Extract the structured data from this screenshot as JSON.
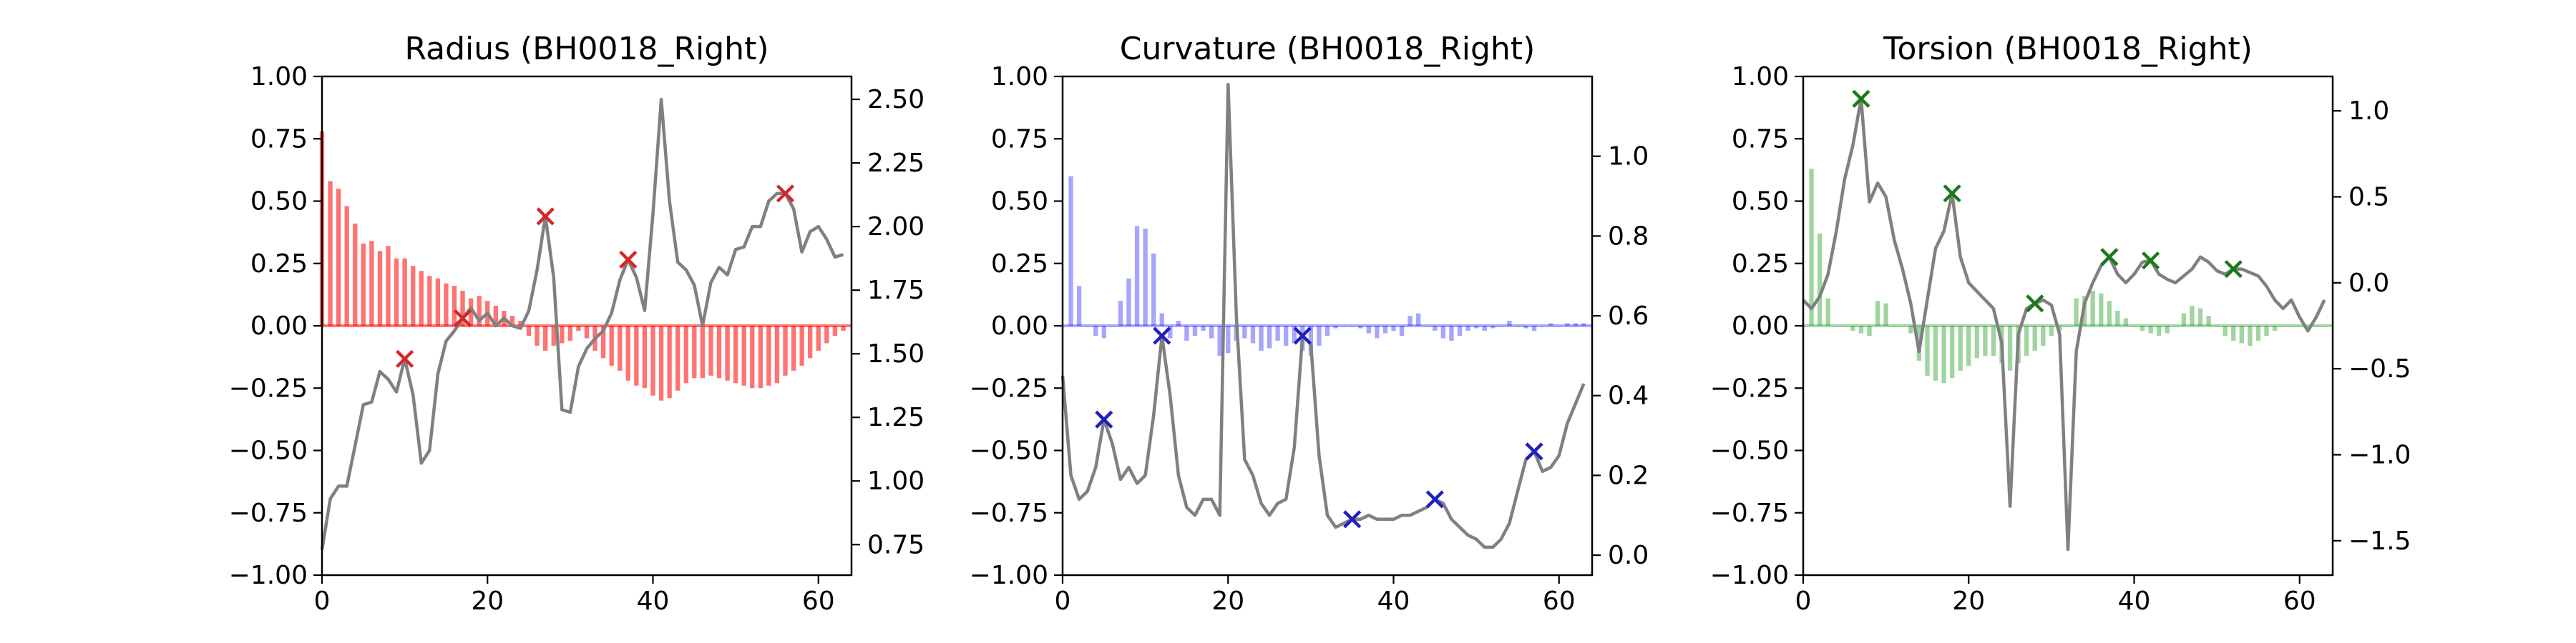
{
  "figure": {
    "background": "#ffffff"
  },
  "chart_data": [
    {
      "type": "bar",
      "title": "Radius (BH0018_Right)",
      "xlim": [
        0,
        64
      ],
      "ylim": [
        -1.0,
        1.0
      ],
      "y2lim": [
        0.63,
        2.59
      ],
      "xticks": [
        "0",
        "20",
        "40",
        "60"
      ],
      "yticks": [
        "1.00",
        "0.75",
        "0.50",
        "0.25",
        "0.00",
        "−0.25",
        "−0.50",
        "−0.75",
        "−1.00"
      ],
      "y2ticks": [
        "2.50",
        "2.25",
        "2.00",
        "1.75",
        "1.50",
        "1.25",
        "1.00",
        "0.75"
      ],
      "bar_color": "#ff0000",
      "bar_alpha": 0.55,
      "marker_color": "#d62728",
      "bars": [
        0.78,
        0.58,
        0.55,
        0.48,
        0.41,
        0.33,
        0.34,
        0.3,
        0.32,
        0.27,
        0.27,
        0.24,
        0.22,
        0.2,
        0.19,
        0.17,
        0.16,
        0.14,
        0.11,
        0.12,
        0.1,
        0.08,
        0.06,
        0.04,
        0.02,
        -0.04,
        -0.08,
        -0.1,
        -0.08,
        -0.07,
        -0.06,
        -0.02,
        -0.05,
        -0.1,
        -0.13,
        -0.16,
        -0.18,
        -0.22,
        -0.24,
        -0.25,
        -0.28,
        -0.3,
        -0.29,
        -0.26,
        -0.23,
        -0.21,
        -0.21,
        -0.2,
        -0.21,
        -0.22,
        -0.23,
        -0.24,
        -0.25,
        -0.25,
        -0.24,
        -0.23,
        -0.2,
        -0.18,
        -0.16,
        -0.13,
        -0.1,
        -0.07,
        -0.04,
        -0.02
      ],
      "line": [
        [
          0,
          0.73
        ],
        [
          1,
          0.93
        ],
        [
          2,
          0.98
        ],
        [
          3,
          0.98
        ],
        [
          4,
          1.14
        ],
        [
          5,
          1.3
        ],
        [
          6,
          1.31
        ],
        [
          7,
          1.43
        ],
        [
          8,
          1.4
        ],
        [
          9,
          1.35
        ],
        [
          10,
          1.48
        ],
        [
          11,
          1.34
        ],
        [
          12,
          1.07
        ],
        [
          13,
          1.12
        ],
        [
          14,
          1.42
        ],
        [
          15,
          1.55
        ],
        [
          16,
          1.59
        ],
        [
          17,
          1.64
        ],
        [
          18,
          1.68
        ],
        [
          19,
          1.63
        ],
        [
          20,
          1.66
        ],
        [
          21,
          1.61
        ],
        [
          22,
          1.64
        ],
        [
          23,
          1.61
        ],
        [
          24,
          1.6
        ],
        [
          25,
          1.67
        ],
        [
          26,
          1.83
        ],
        [
          27,
          2.04
        ],
        [
          28,
          1.8
        ],
        [
          29,
          1.28
        ],
        [
          30,
          1.27
        ],
        [
          31,
          1.45
        ],
        [
          32,
          1.52
        ],
        [
          33,
          1.56
        ],
        [
          34,
          1.59
        ],
        [
          35,
          1.66
        ],
        [
          36,
          1.79
        ],
        [
          37,
          1.87
        ],
        [
          38,
          1.8
        ],
        [
          39,
          1.67
        ],
        [
          40,
          2.05
        ],
        [
          41,
          2.5
        ],
        [
          42,
          2.1
        ],
        [
          43,
          1.86
        ],
        [
          44,
          1.83
        ],
        [
          45,
          1.77
        ],
        [
          46,
          1.61
        ],
        [
          47,
          1.78
        ],
        [
          48,
          1.84
        ],
        [
          49,
          1.81
        ],
        [
          50,
          1.91
        ],
        [
          51,
          1.92
        ],
        [
          52,
          2.0
        ],
        [
          53,
          2.0
        ],
        [
          54,
          2.1
        ],
        [
          55,
          2.13
        ],
        [
          56,
          2.13
        ],
        [
          57,
          2.07
        ],
        [
          58,
          1.9
        ],
        [
          59,
          1.98
        ],
        [
          60,
          2.0
        ],
        [
          61,
          1.95
        ],
        [
          62,
          1.88
        ],
        [
          63,
          1.89
        ]
      ],
      "markers": [
        [
          10,
          1.48
        ],
        [
          17,
          1.64
        ],
        [
          27,
          2.04
        ],
        [
          37,
          1.87
        ],
        [
          56,
          2.13
        ]
      ]
    },
    {
      "type": "bar",
      "title": "Curvature (BH0018_Right)",
      "xlim": [
        0,
        64
      ],
      "ylim": [
        -1.0,
        1.0
      ],
      "y2lim": [
        -0.05,
        1.2
      ],
      "xticks": [
        "0",
        "20",
        "40",
        "60"
      ],
      "yticks": [
        "1.00",
        "0.75",
        "0.50",
        "0.25",
        "0.00",
        "−0.25",
        "−0.50",
        "−0.75",
        "−1.00"
      ],
      "y2ticks": [
        "1.0",
        "0.8",
        "0.6",
        "0.4",
        "0.2",
        "0.0"
      ],
      "bar_color": "#0000ff",
      "bar_alpha": 0.35,
      "marker_color": "#1f1fbf",
      "bars": [
        0.0,
        0.6,
        0.16,
        0.0,
        -0.04,
        -0.05,
        0.0,
        0.1,
        0.19,
        0.4,
        0.39,
        0.29,
        0.05,
        -0.05,
        0.02,
        -0.06,
        -0.04,
        -0.02,
        -0.05,
        -0.12,
        -0.11,
        -0.06,
        -0.05,
        -0.07,
        -0.1,
        -0.09,
        -0.06,
        -0.08,
        -0.07,
        -0.1,
        -0.12,
        -0.08,
        -0.04,
        -0.01,
        0.0,
        0.0,
        -0.01,
        -0.03,
        -0.05,
        -0.03,
        -0.02,
        -0.04,
        0.04,
        0.05,
        0.0,
        -0.02,
        -0.05,
        -0.06,
        -0.04,
        -0.02,
        -0.01,
        -0.02,
        -0.01,
        0.0,
        0.02,
        0.0,
        -0.01,
        -0.02,
        0.0,
        0.01,
        0.0,
        0.01,
        0.01,
        0.01
      ],
      "line": [
        [
          0,
          0.45
        ],
        [
          1,
          0.2
        ],
        [
          2,
          0.14
        ],
        [
          3,
          0.16
        ],
        [
          4,
          0.22
        ],
        [
          5,
          0.34
        ],
        [
          6,
          0.28
        ],
        [
          7,
          0.19
        ],
        [
          8,
          0.22
        ],
        [
          9,
          0.18
        ],
        [
          10,
          0.2
        ],
        [
          11,
          0.35
        ],
        [
          12,
          0.55
        ],
        [
          13,
          0.4
        ],
        [
          14,
          0.2
        ],
        [
          15,
          0.12
        ],
        [
          16,
          0.1
        ],
        [
          17,
          0.14
        ],
        [
          18,
          0.14
        ],
        [
          19,
          0.1
        ],
        [
          20,
          1.18
        ],
        [
          21,
          0.6
        ],
        [
          22,
          0.24
        ],
        [
          23,
          0.2
        ],
        [
          24,
          0.13
        ],
        [
          25,
          0.1
        ],
        [
          26,
          0.13
        ],
        [
          27,
          0.14
        ],
        [
          28,
          0.27
        ],
        [
          29,
          0.55
        ],
        [
          30,
          0.53
        ],
        [
          31,
          0.25
        ],
        [
          32,
          0.1
        ],
        [
          33,
          0.07
        ],
        [
          34,
          0.08
        ],
        [
          35,
          0.09
        ],
        [
          36,
          0.09
        ],
        [
          37,
          0.1
        ],
        [
          38,
          0.09
        ],
        [
          39,
          0.09
        ],
        [
          40,
          0.09
        ],
        [
          41,
          0.1
        ],
        [
          42,
          0.1
        ],
        [
          43,
          0.11
        ],
        [
          44,
          0.12
        ],
        [
          45,
          0.14
        ],
        [
          46,
          0.13
        ],
        [
          47,
          0.09
        ],
        [
          48,
          0.07
        ],
        [
          49,
          0.05
        ],
        [
          50,
          0.04
        ],
        [
          51,
          0.02
        ],
        [
          52,
          0.02
        ],
        [
          53,
          0.04
        ],
        [
          54,
          0.08
        ],
        [
          55,
          0.16
        ],
        [
          56,
          0.24
        ],
        [
          57,
          0.26
        ],
        [
          58,
          0.21
        ],
        [
          59,
          0.22
        ],
        [
          60,
          0.25
        ],
        [
          61,
          0.33
        ],
        [
          62,
          0.38
        ],
        [
          63,
          0.43
        ]
      ],
      "markers": [
        [
          5,
          0.34
        ],
        [
          12,
          0.55
        ],
        [
          29,
          0.55
        ],
        [
          35,
          0.09
        ],
        [
          45,
          0.14
        ],
        [
          57,
          0.26
        ]
      ]
    },
    {
      "type": "bar",
      "title": "Torsion (BH0018_Right)",
      "xlim": [
        0,
        64
      ],
      "ylim": [
        -1.0,
        1.0
      ],
      "y2lim": [
        -1.7,
        1.2
      ],
      "xticks": [
        "0",
        "20",
        "40",
        "60"
      ],
      "yticks": [
        "1.00",
        "0.75",
        "0.50",
        "0.25",
        "0.00",
        "−0.25",
        "−0.50",
        "−0.75",
        "−1.00"
      ],
      "y2ticks": [
        "1.0",
        "0.5",
        "0.0",
        "−0.5",
        "−1.0",
        "−1.5"
      ],
      "bar_color": "#2ca02c",
      "bar_alpha": 0.45,
      "marker_color": "#1a7a1a",
      "bars": [
        0.0,
        0.63,
        0.37,
        0.11,
        0.0,
        0.0,
        -0.02,
        -0.03,
        -0.04,
        0.1,
        0.09,
        0.0,
        0.0,
        -0.03,
        -0.14,
        -0.2,
        -0.22,
        -0.23,
        -0.21,
        -0.18,
        -0.16,
        -0.13,
        -0.12,
        -0.12,
        -0.15,
        -0.18,
        -0.15,
        -0.12,
        -0.1,
        -0.08,
        -0.04,
        -0.02,
        0.0,
        0.11,
        0.12,
        0.14,
        0.13,
        0.1,
        0.06,
        0.03,
        0.0,
        -0.02,
        -0.03,
        -0.04,
        -0.03,
        0.0,
        0.05,
        0.08,
        0.07,
        0.04,
        0.0,
        -0.04,
        -0.06,
        -0.07,
        -0.08,
        -0.06,
        -0.04,
        -0.02,
        0.0,
        0.0,
        0.0,
        0.0,
        0.0,
        0.0
      ],
      "line": [
        [
          0,
          -0.1
        ],
        [
          1,
          -0.15
        ],
        [
          2,
          -0.08
        ],
        [
          3,
          0.05
        ],
        [
          4,
          0.3
        ],
        [
          5,
          0.6
        ],
        [
          6,
          0.8
        ],
        [
          7,
          1.07
        ],
        [
          8,
          0.47
        ],
        [
          9,
          0.58
        ],
        [
          10,
          0.5
        ],
        [
          11,
          0.25
        ],
        [
          12,
          0.08
        ],
        [
          13,
          -0.12
        ],
        [
          14,
          -0.4
        ],
        [
          15,
          -0.1
        ],
        [
          16,
          0.2
        ],
        [
          17,
          0.3
        ],
        [
          18,
          0.52
        ],
        [
          19,
          0.15
        ],
        [
          20,
          0.0
        ],
        [
          21,
          -0.05
        ],
        [
          22,
          -0.1
        ],
        [
          23,
          -0.15
        ],
        [
          24,
          -0.35
        ],
        [
          25,
          -1.3
        ],
        [
          26,
          -0.3
        ],
        [
          27,
          -0.15
        ],
        [
          28,
          -0.12
        ],
        [
          29,
          -0.1
        ],
        [
          30,
          -0.13
        ],
        [
          31,
          -0.3
        ],
        [
          32,
          -1.55
        ],
        [
          33,
          -0.4
        ],
        [
          34,
          -0.12
        ],
        [
          35,
          0.0
        ],
        [
          36,
          0.1
        ],
        [
          37,
          0.15
        ],
        [
          38,
          0.05
        ],
        [
          39,
          0.0
        ],
        [
          40,
          0.05
        ],
        [
          41,
          0.12
        ],
        [
          42,
          0.13
        ],
        [
          43,
          0.05
        ],
        [
          44,
          0.02
        ],
        [
          45,
          0.0
        ],
        [
          46,
          0.04
        ],
        [
          47,
          0.08
        ],
        [
          48,
          0.15
        ],
        [
          49,
          0.12
        ],
        [
          50,
          0.07
        ],
        [
          51,
          0.05
        ],
        [
          52,
          0.08
        ],
        [
          53,
          0.08
        ],
        [
          54,
          0.06
        ],
        [
          55,
          0.04
        ],
        [
          56,
          -0.02
        ],
        [
          57,
          -0.1
        ],
        [
          58,
          -0.15
        ],
        [
          59,
          -0.1
        ],
        [
          60,
          -0.2
        ],
        [
          61,
          -0.28
        ],
        [
          62,
          -0.2
        ],
        [
          63,
          -0.1
        ]
      ],
      "markers": [
        [
          7,
          1.07
        ],
        [
          18,
          0.52
        ],
        [
          28,
          -0.12
        ],
        [
          37,
          0.15
        ],
        [
          42,
          0.13
        ],
        [
          52,
          0.08
        ]
      ]
    }
  ]
}
